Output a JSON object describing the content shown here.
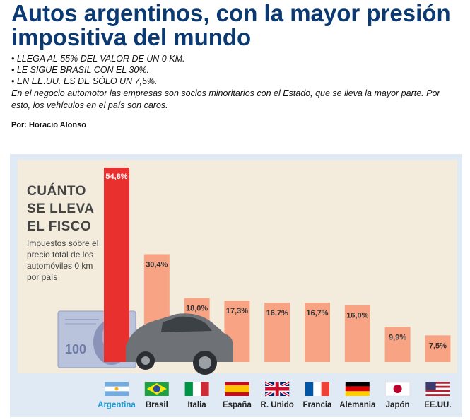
{
  "article": {
    "headline": "Autos argentinos, con la mayor presión impositiva del mundo",
    "bullets": [
      "• LLEGA AL 55% DEL VALOR DE UN 0 KM.",
      "• LE SIGUE BRASIL CON EL 30%.",
      "• EN EE.UU. ES DE SÓLO UN 7,5%."
    ],
    "lede": "En el negocio automotor las empresas son socios minoritarios con el Estado, que se lleva la mayor parte. Por esto, los vehículos en el país son caros.",
    "byline": "Por: Horacio Alonso"
  },
  "chart_data": {
    "type": "bar",
    "title": "CUÁNTO SE LLEVA EL FISCO",
    "subtitle": "Impuestos sobre el precio total de los automóviles 0 km por país",
    "categories": [
      "Argentina",
      "Brasil",
      "Italia",
      "España",
      "R. Unido",
      "Francia",
      "Alemania",
      "Japón",
      "EE.UU."
    ],
    "values": [
      54.8,
      30.4,
      18.0,
      17.3,
      16.7,
      16.7,
      16.0,
      9.9,
      7.5
    ],
    "value_labels": [
      "54,8%",
      "30,4%",
      "18,0%",
      "17,3%",
      "16,7%",
      "16,7%",
      "16,0%",
      "9,9%",
      "7,5%"
    ],
    "unit": "%",
    "ylim": [
      0,
      55
    ],
    "highlight_category": "Argentina",
    "colors": {
      "highlight_bar": "#e8312f",
      "bar": "#f7a384",
      "highlight_label": "#1e9ad6",
      "label": "#222222",
      "background": "#f3ecdc",
      "frame": "#dfeaf5"
    },
    "flags": [
      "flag-argentina-icon",
      "flag-brazil-icon",
      "flag-italy-icon",
      "flag-spain-icon",
      "flag-uk-icon",
      "flag-france-icon",
      "flag-germany-icon",
      "flag-japan-icon",
      "flag-usa-icon"
    ],
    "decorations": [
      "banknote-illustration",
      "car-illustration"
    ],
    "banknote_text": "100"
  }
}
